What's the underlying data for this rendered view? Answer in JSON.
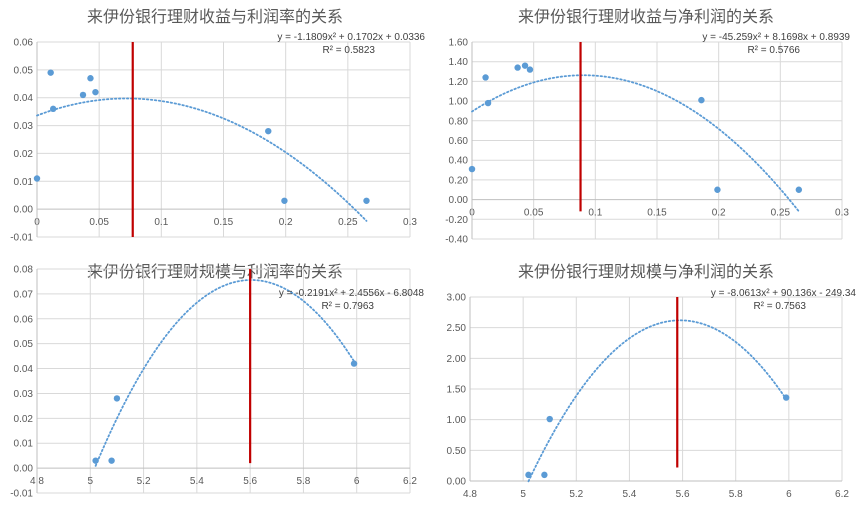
{
  "colors": {
    "points": "#5b9bd5",
    "trend": "#5b9bd5",
    "marker": "#c00000",
    "grid": "#d9d9d9",
    "text": "#595959"
  },
  "chart_data": [
    {
      "type": "scatter",
      "title": "来伊份银行理财收益与利润率的关系",
      "xlabel": "",
      "ylabel": "",
      "xlim": [
        0,
        0.3
      ],
      "ylim": [
        -0.01,
        0.06
      ],
      "xticks": [
        0,
        0.05,
        0.1,
        0.15,
        0.2,
        0.25,
        0.3
      ],
      "xtick_labels": [
        "0",
        "0.05",
        "0.1",
        "0.15",
        "0.2",
        "0.25",
        "0.3"
      ],
      "yticks": [
        -0.01,
        0,
        0.01,
        0.02,
        0.03,
        0.04,
        0.05,
        0.06
      ],
      "ytick_labels": [
        "-0.01",
        "0.00",
        "0.01",
        "0.02",
        "0.03",
        "0.04",
        "0.05",
        "0.06"
      ],
      "x_axis_at": 0,
      "grid": true,
      "points": {
        "x": [
          0,
          0.011,
          0.013,
          0.037,
          0.043,
          0.047,
          0.186,
          0.199,
          0.265
        ],
        "y": [
          0.011,
          0.049,
          0.036,
          0.041,
          0.047,
          0.042,
          0.028,
          0.003,
          0.003
        ]
      },
      "trendline": {
        "type": "polynomial-2",
        "coef": [
          -1.1809,
          0.1702,
          0.0336
        ],
        "range": [
          0,
          0.265
        ],
        "equation": "y = -1.1809x² + 0.1702x + 0.0336",
        "r2": "R² = 0.5823"
      },
      "vline": {
        "x": 0.077,
        "y_from": -0.01,
        "y_to": 0.06
      }
    },
    {
      "type": "scatter",
      "title": "来伊份银行理财收益与净利润的关系",
      "xlabel": "",
      "ylabel": "",
      "xlim": [
        0,
        0.3
      ],
      "ylim": [
        -0.4,
        1.6
      ],
      "xticks": [
        0,
        0.05,
        0.1,
        0.15,
        0.2,
        0.25,
        0.3
      ],
      "xtick_labels": [
        "0",
        "0.05",
        "0.1",
        "0.15",
        "0.2",
        "0.25",
        "0.3"
      ],
      "yticks": [
        -0.4,
        -0.2,
        0,
        0.2,
        0.4,
        0.6,
        0.8,
        1.0,
        1.2,
        1.4,
        1.6
      ],
      "ytick_labels": [
        "-0.40",
        "-0.20",
        "0.00",
        "0.20",
        "0.40",
        "0.60",
        "0.80",
        "1.00",
        "1.20",
        "1.40",
        "1.60"
      ],
      "x_axis_at": 0,
      "grid": true,
      "points": {
        "x": [
          0,
          0.011,
          0.013,
          0.037,
          0.043,
          0.047,
          0.186,
          0.199,
          0.265
        ],
        "y": [
          0.31,
          1.24,
          0.98,
          1.34,
          1.36,
          1.32,
          1.01,
          0.1,
          0.1
        ]
      },
      "trendline": {
        "type": "polynomial-2",
        "coef": [
          -45.259,
          8.1698,
          0.8939
        ],
        "range": [
          0,
          0.265
        ],
        "equation": "y = -45.259x² + 8.1698x + 0.8939",
        "r2": "R² = 0.5766"
      },
      "vline": {
        "x": 0.088,
        "y_from": -0.12,
        "y_to": 1.6
      }
    },
    {
      "type": "scatter",
      "title": "来伊份银行理财规模与利润率的关系",
      "xlabel": "",
      "ylabel": "",
      "xlim": [
        4.8,
        6.2
      ],
      "ylim": [
        -0.01,
        0.08
      ],
      "xticks": [
        4.8,
        5.0,
        5.2,
        5.4,
        5.6,
        5.8,
        6.0,
        6.2
      ],
      "xtick_labels": [
        "4.8",
        "5",
        "5.2",
        "5.4",
        "5.6",
        "5.8",
        "6",
        "6.2"
      ],
      "yticks": [
        -0.01,
        0,
        0.01,
        0.02,
        0.03,
        0.04,
        0.05,
        0.06,
        0.07,
        0.08
      ],
      "ytick_labels": [
        "-0.01",
        "0.00",
        "0.01",
        "0.02",
        "0.03",
        "0.04",
        "0.05",
        "0.06",
        "0.07",
        "0.08"
      ],
      "x_axis_at": 0,
      "grid": true,
      "points": {
        "x": [
          5.02,
          5.08,
          5.1,
          5.99
        ],
        "y": [
          0.003,
          0.003,
          0.028,
          0.042
        ]
      },
      "trendline": {
        "type": "polynomial-2",
        "coef": [
          -0.2191,
          2.4556,
          -6.8048
        ],
        "range": [
          5.02,
          5.99
        ],
        "equation": "y = -0.2191x² + 2.4556x - 6.8048",
        "r2": "R² = 0.7963"
      },
      "vline": {
        "x": 5.6,
        "y_from": 0.002,
        "y_to": 0.08
      }
    },
    {
      "type": "scatter",
      "title": "来伊份银行理财规模与净利润的关系",
      "xlabel": "",
      "ylabel": "",
      "xlim": [
        4.8,
        6.2
      ],
      "ylim": [
        0,
        3.0
      ],
      "xticks": [
        4.8,
        5.0,
        5.2,
        5.4,
        5.6,
        5.8,
        6.0,
        6.2
      ],
      "xtick_labels": [
        "4.8",
        "5",
        "5.2",
        "5.4",
        "5.6",
        "5.8",
        "6",
        "6.2"
      ],
      "yticks": [
        0,
        0.5,
        1.0,
        1.5,
        2.0,
        2.5,
        3.0
      ],
      "ytick_labels": [
        "0.00",
        "0.50",
        "1.00",
        "1.50",
        "2.00",
        "2.50",
        "3.00"
      ],
      "x_axis_at": 0,
      "grid": true,
      "points": {
        "x": [
          5.02,
          5.08,
          5.1,
          5.99
        ],
        "y": [
          0.1,
          0.1,
          1.01,
          1.36
        ]
      },
      "trendline": {
        "type": "polynomial-2",
        "coef": [
          -8.0613,
          90.136,
          -249.34
        ],
        "range": [
          5.02,
          5.99
        ],
        "equation": "y = -8.0613x² + 90.136x - 249.34",
        "r2": "R² = 0.7563"
      },
      "vline": {
        "x": 5.58,
        "y_from": 0.22,
        "y_to": 3.0
      }
    }
  ]
}
